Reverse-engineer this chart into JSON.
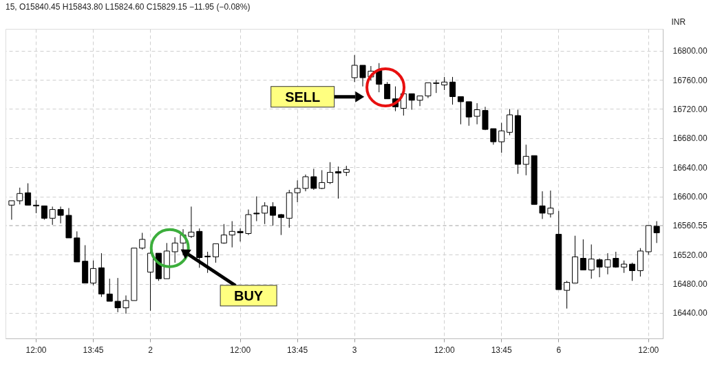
{
  "chart_data": {
    "type": "candlestick",
    "title": "15, O15840.45 H15843.80 L15824.60 C15829.15 −11.95 (−0.08%)",
    "ylabel": "INR",
    "categories": [
      null,
      null,
      null,
      "12:00",
      null,
      null,
      null,
      null,
      null,
      null,
      "13:45",
      null,
      null,
      null,
      null,
      null,
      null,
      "2",
      null,
      null,
      null,
      null,
      null,
      null,
      null,
      null,
      null,
      null,
      "12:00",
      null,
      null,
      null,
      null,
      null,
      null,
      "13:45",
      null,
      null,
      null,
      null,
      null,
      null,
      "3",
      null,
      null,
      null,
      null,
      null,
      null,
      null,
      null,
      null,
      null,
      "12:00",
      null,
      null,
      null,
      null,
      null,
      null,
      "13:45",
      null,
      null,
      null,
      null,
      null,
      null,
      "6",
      null,
      null,
      null,
      null,
      null,
      null,
      null,
      null,
      null,
      null,
      "12:00",
      null
    ],
    "ohlc": [
      [
        16588,
        16594,
        16568,
        16594
      ],
      [
        16594,
        16612,
        16589,
        16604
      ],
      [
        16605,
        16618,
        16588,
        16588
      ],
      [
        16588,
        16595,
        16577,
        16587
      ],
      [
        16587,
        16587,
        16568,
        16570
      ],
      [
        16570,
        16586,
        16561,
        16582
      ],
      [
        16582,
        16586,
        16563,
        16574
      ],
      [
        16574,
        16584,
        16543,
        16543
      ],
      [
        16543,
        16552,
        16510,
        16510
      ],
      [
        16511,
        16533,
        16481,
        16481
      ],
      [
        16481,
        16512,
        16478,
        16501
      ],
      [
        16502,
        16522,
        16462,
        16466
      ],
      [
        16466,
        16487,
        16456,
        16456
      ],
      [
        16456,
        16488,
        16441,
        16447
      ],
      [
        16447,
        16464,
        16439,
        16457
      ],
      [
        16457,
        16529,
        16457,
        16529
      ],
      [
        16529,
        16550,
        16527,
        16541
      ],
      [
        16496,
        16525,
        16443,
        16522
      ],
      [
        16522,
        16522,
        16484,
        16487
      ],
      [
        16487,
        16536,
        16487,
        16525
      ],
      [
        16524,
        16544,
        16509,
        16536
      ],
      [
        16536,
        16555,
        16519,
        16547
      ],
      [
        16545,
        16586,
        16543,
        16551
      ],
      [
        16552,
        16556,
        16502,
        16516
      ],
      [
        16518,
        16524,
        16495,
        16517
      ],
      [
        16517,
        16535,
        16509,
        16535
      ],
      [
        16536,
        16562,
        16535,
        16547
      ],
      [
        16547,
        16566,
        16530,
        16552
      ],
      [
        16552,
        16556,
        16538,
        16550
      ],
      [
        16549,
        16582,
        16547,
        16575
      ],
      [
        16577,
        16600,
        16566,
        16576
      ],
      [
        16577,
        16592,
        16562,
        16587
      ],
      [
        16586,
        16592,
        16560,
        16574
      ],
      [
        16575,
        16576,
        16547,
        16571
      ],
      [
        16570,
        16609,
        16557,
        16605
      ],
      [
        16605,
        16622,
        16592,
        16611
      ],
      [
        16611,
        16630,
        16607,
        16627
      ],
      [
        16627,
        16638,
        16609,
        16611
      ],
      [
        16611,
        16636,
        16610,
        16619
      ],
      [
        16619,
        16647,
        16617,
        16633
      ],
      [
        16634,
        16641,
        16597,
        16632
      ],
      [
        16633,
        16642,
        16628,
        16637
      ],
      [
        16763,
        16794,
        16757,
        16780
      ],
      [
        16780,
        16780,
        16751,
        16763
      ],
      [
        16764,
        16779,
        16759,
        16772
      ],
      [
        16773,
        16783,
        16743,
        16754
      ],
      [
        16754,
        16757,
        16734,
        16734
      ],
      [
        16734,
        16751,
        16717,
        16723
      ],
      [
        16721,
        16741,
        16711,
        16741
      ],
      [
        16741,
        16741,
        16719,
        16732
      ],
      [
        16732,
        16738,
        16724,
        16738
      ],
      [
        16738,
        16756,
        16735,
        16756
      ],
      [
        16755,
        16760,
        16742,
        16756
      ],
      [
        16753,
        16764,
        16746,
        16757
      ],
      [
        16757,
        16764,
        16726,
        16737
      ],
      [
        16737,
        16737,
        16699,
        16730
      ],
      [
        16730,
        16730,
        16697,
        16709
      ],
      [
        16710,
        16728,
        16699,
        16719
      ],
      [
        16718,
        16723,
        16691,
        16692
      ],
      [
        16693,
        16693,
        16671,
        16675
      ],
      [
        16675,
        16701,
        16660,
        16690
      ],
      [
        16688,
        16720,
        16684,
        16712
      ],
      [
        16711,
        16719,
        16631,
        16644
      ],
      [
        16644,
        16671,
        16629,
        16655
      ],
      [
        16656,
        16656,
        16589,
        16589
      ],
      [
        16587,
        16607,
        16569,
        16577
      ],
      [
        16576,
        16608,
        16571,
        16584
      ],
      [
        16548,
        16580,
        16472,
        16472
      ],
      [
        16471,
        16484,
        16446,
        16482
      ],
      [
        16481,
        16546,
        16481,
        16517
      ],
      [
        16515,
        16541,
        16499,
        16499
      ],
      [
        16499,
        16534,
        16487,
        16514
      ],
      [
        16513,
        16515,
        16489,
        16503
      ],
      [
        16503,
        16522,
        16493,
        16513
      ],
      [
        16515,
        16524,
        16502,
        16503
      ],
      [
        16503,
        16512,
        16495,
        16507
      ],
      [
        16507,
        16509,
        16484,
        16498
      ],
      [
        16498,
        16529,
        16490,
        16525
      ],
      [
        16524,
        16560,
        16520,
        16560
      ],
      [
        16559,
        16566,
        16536,
        16550
      ]
    ],
    "ylim": [
      16405,
      16830
    ],
    "yticks": [
      {
        "value": 16440,
        "label": "16440.00"
      },
      {
        "value": 16480,
        "label": "16480.00"
      },
      {
        "value": 16520,
        "label": "16520.00"
      },
      {
        "value": 16560,
        "label": null
      },
      {
        "value": 16560.55,
        "label": "16560.55"
      },
      {
        "value": 16600,
        "label": "16600.00"
      },
      {
        "value": 16640,
        "label": "16640.00"
      },
      {
        "value": 16680,
        "label": "16680.00"
      },
      {
        "value": 16720,
        "label": "16720.00"
      },
      {
        "value": 16760,
        "label": "16760.00"
      },
      {
        "value": 16800,
        "label": "16800.00"
      }
    ],
    "grid": true,
    "annotations": [
      "SELL",
      "BUY"
    ]
  }
}
